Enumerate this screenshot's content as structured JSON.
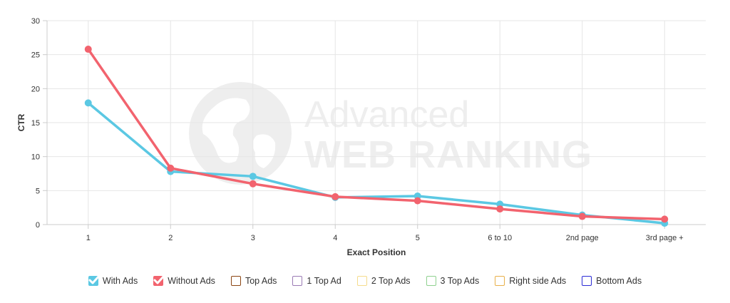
{
  "watermark": {
    "line1": "Advanced",
    "line2": "WEB RANKING"
  },
  "chart_data": {
    "type": "line",
    "xlabel": "Exact Position",
    "ylabel": "CTR",
    "ylim": [
      0,
      30
    ],
    "yticks": [
      0,
      5,
      10,
      15,
      20,
      25,
      30
    ],
    "categories": [
      "1",
      "2",
      "3",
      "4",
      "5",
      "6 to 10",
      "2nd page",
      "3rd page +"
    ],
    "grid": true,
    "legend_position": "bottom",
    "series": [
      {
        "name": "With Ads",
        "color": "#5bc8e3",
        "values": [
          17.9,
          7.8,
          7.1,
          4.0,
          4.2,
          3.0,
          1.4,
          0.2
        ]
      },
      {
        "name": "Without Ads",
        "color": "#f2636e",
        "values": [
          25.8,
          8.3,
          6.0,
          4.1,
          3.5,
          2.3,
          1.2,
          0.8
        ]
      }
    ]
  },
  "legend": [
    {
      "label": "With Ads",
      "color": "#5bc8e3",
      "checked": true
    },
    {
      "label": "Without Ads",
      "color": "#f2636e",
      "checked": true
    },
    {
      "label": "Top Ads",
      "color": "#8b4513",
      "checked": false
    },
    {
      "label": "1 Top Ad",
      "color": "#9b7bb5",
      "checked": false
    },
    {
      "label": "2 Top Ads",
      "color": "#f5dc8c",
      "checked": false
    },
    {
      "label": "3 Top Ads",
      "color": "#8fd18f",
      "checked": false
    },
    {
      "label": "Right side Ads",
      "color": "#e8b04a",
      "checked": false
    },
    {
      "label": "Bottom Ads",
      "color": "#2b2bd6",
      "checked": false
    }
  ]
}
